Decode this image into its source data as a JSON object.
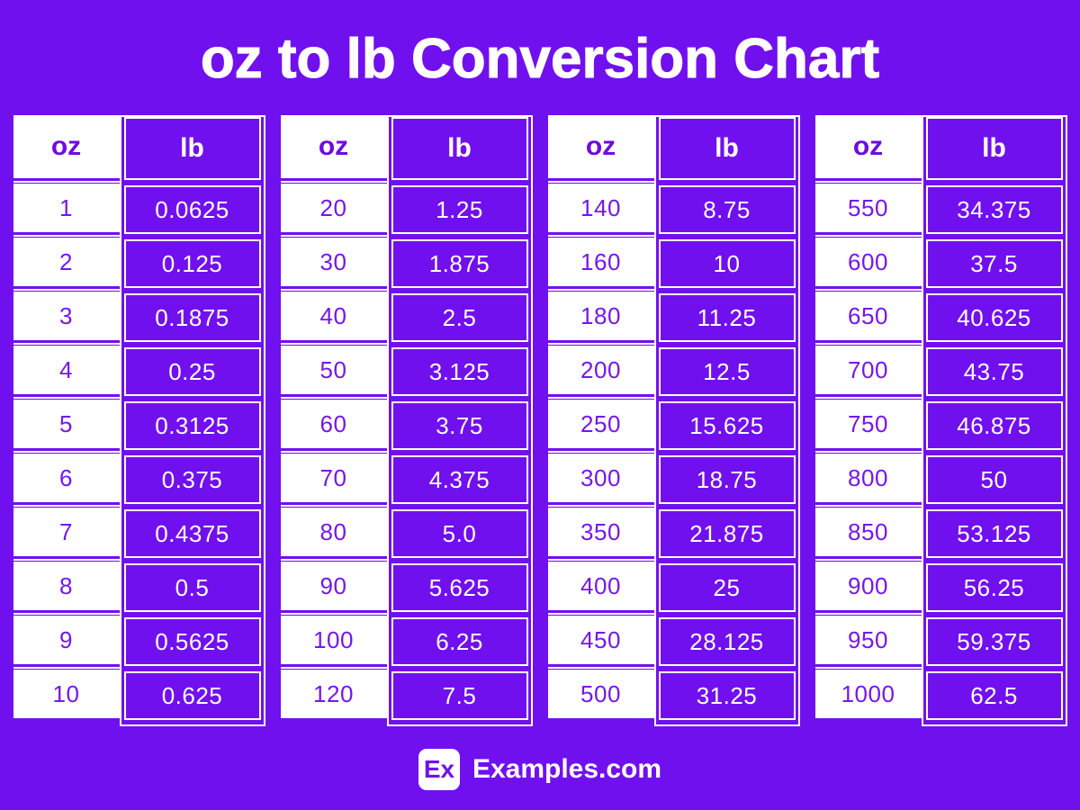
{
  "title": "oz to lb Conversion Chart",
  "colors": {
    "background": "#7110EF",
    "header_text": "#6D0CDE",
    "value_text": "#7517EA",
    "cell_white": "#FFFFFF",
    "text_on_purple": "#FFFFFF"
  },
  "footer": {
    "logo_text": "Ex",
    "site_name": "Examples.com"
  },
  "chart_data": {
    "type": "table",
    "title": "oz to lb Conversion Chart",
    "columns": {
      "oz": "oz",
      "lb": "lb"
    },
    "tables": [
      {
        "rows": [
          {
            "oz": "1",
            "lb": "0.0625"
          },
          {
            "oz": "2",
            "lb": "0.125"
          },
          {
            "oz": "3",
            "lb": "0.1875"
          },
          {
            "oz": "4",
            "lb": "0.25"
          },
          {
            "oz": "5",
            "lb": "0.3125"
          },
          {
            "oz": "6",
            "lb": "0.375"
          },
          {
            "oz": "7",
            "lb": "0.4375"
          },
          {
            "oz": "8",
            "lb": "0.5"
          },
          {
            "oz": "9",
            "lb": "0.5625"
          },
          {
            "oz": "10",
            "lb": "0.625"
          }
        ]
      },
      {
        "rows": [
          {
            "oz": "20",
            "lb": "1.25"
          },
          {
            "oz": "30",
            "lb": "1.875"
          },
          {
            "oz": "40",
            "lb": "2.5"
          },
          {
            "oz": "50",
            "lb": "3.125"
          },
          {
            "oz": "60",
            "lb": "3.75"
          },
          {
            "oz": "70",
            "lb": "4.375"
          },
          {
            "oz": "80",
            "lb": "5.0"
          },
          {
            "oz": "90",
            "lb": "5.625"
          },
          {
            "oz": "100",
            "lb": "6.25"
          },
          {
            "oz": "120",
            "lb": "7.5"
          }
        ]
      },
      {
        "rows": [
          {
            "oz": "140",
            "lb": "8.75"
          },
          {
            "oz": "160",
            "lb": "10"
          },
          {
            "oz": "180",
            "lb": "11.25"
          },
          {
            "oz": "200",
            "lb": "12.5"
          },
          {
            "oz": "250",
            "lb": "15.625"
          },
          {
            "oz": "300",
            "lb": "18.75"
          },
          {
            "oz": "350",
            "lb": "21.875"
          },
          {
            "oz": "400",
            "lb": "25"
          },
          {
            "oz": "450",
            "lb": "28.125"
          },
          {
            "oz": "500",
            "lb": "31.25"
          }
        ]
      },
      {
        "rows": [
          {
            "oz": "550",
            "lb": "34.375"
          },
          {
            "oz": "600",
            "lb": "37.5"
          },
          {
            "oz": "650",
            "lb": "40.625"
          },
          {
            "oz": "700",
            "lb": "43.75"
          },
          {
            "oz": "750",
            "lb": "46.875"
          },
          {
            "oz": "800",
            "lb": "50"
          },
          {
            "oz": "850",
            "lb": "53.125"
          },
          {
            "oz": "900",
            "lb": "56.25"
          },
          {
            "oz": "950",
            "lb": "59.375"
          },
          {
            "oz": "1000",
            "lb": "62.5"
          }
        ]
      }
    ]
  }
}
